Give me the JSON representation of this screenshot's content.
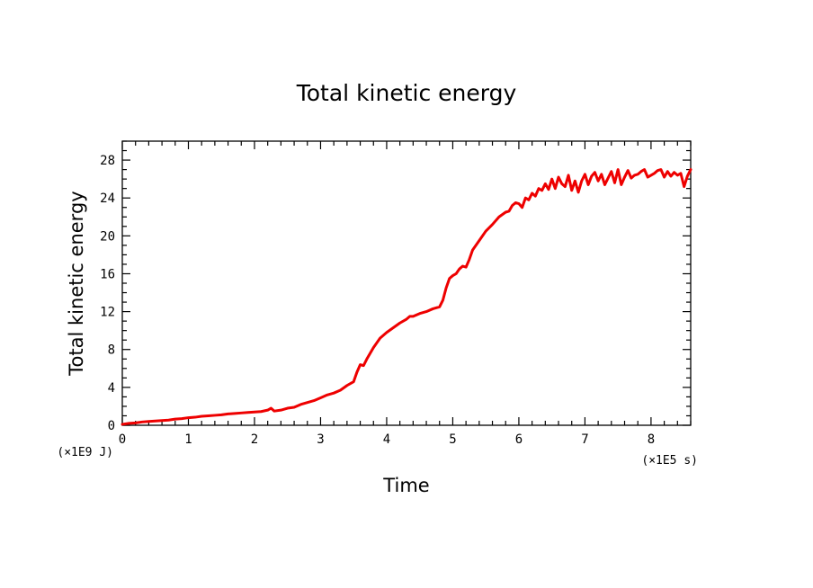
{
  "chart_data": {
    "type": "line",
    "title": "Total kinetic energy",
    "xlabel": "Time",
    "ylabel": "Total kinetic energy",
    "x_multiplier": "(×1E5 s)",
    "y_multiplier": "(×1E9 J)",
    "xlim": [
      0,
      8.6
    ],
    "ylim": [
      0,
      30
    ],
    "x_ticks": [
      "0",
      "1",
      "2",
      "3",
      "4",
      "5",
      "6",
      "7",
      "8"
    ],
    "y_ticks": [
      "0",
      "4",
      "8",
      "12",
      "16",
      "20",
      "24",
      "28"
    ],
    "grid": false,
    "legend": "none",
    "series": [
      {
        "color": "#ee0000",
        "x": [
          0,
          0.1,
          0.2,
          0.3,
          0.4,
          0.5,
          0.6,
          0.7,
          0.8,
          0.9,
          1.0,
          1.1,
          1.2,
          1.3,
          1.4,
          1.5,
          1.6,
          1.7,
          1.8,
          1.9,
          2.0,
          2.1,
          2.2,
          2.25,
          2.3,
          2.4,
          2.5,
          2.6,
          2.7,
          2.8,
          2.9,
          3.0,
          3.1,
          3.2,
          3.3,
          3.4,
          3.5,
          3.55,
          3.6,
          3.65,
          3.7,
          3.8,
          3.9,
          4.0,
          4.1,
          4.2,
          4.3,
          4.35,
          4.4,
          4.5,
          4.6,
          4.7,
          4.8,
          4.85,
          4.9,
          4.95,
          5.0,
          5.05,
          5.1,
          5.15,
          5.2,
          5.25,
          5.3,
          5.4,
          5.5,
          5.6,
          5.7,
          5.8,
          5.85,
          5.9,
          5.95,
          6.0,
          6.05,
          6.1,
          6.15,
          6.2,
          6.25,
          6.3,
          6.35,
          6.4,
          6.45,
          6.5,
          6.55,
          6.6,
          6.65,
          6.7,
          6.75,
          6.8,
          6.85,
          6.9,
          6.95,
          7.0,
          7.05,
          7.1,
          7.15,
          7.2,
          7.25,
          7.3,
          7.35,
          7.4,
          7.45,
          7.5,
          7.55,
          7.6,
          7.65,
          7.7,
          7.75,
          7.8,
          7.85,
          7.9,
          7.95,
          8.0,
          8.05,
          8.1,
          8.15,
          8.2,
          8.25,
          8.3,
          8.35,
          8.4,
          8.45,
          8.5,
          8.55,
          8.6
        ],
        "y": [
          0.1,
          0.2,
          0.25,
          0.35,
          0.4,
          0.45,
          0.5,
          0.55,
          0.65,
          0.7,
          0.8,
          0.85,
          0.95,
          1.0,
          1.05,
          1.1,
          1.2,
          1.25,
          1.3,
          1.35,
          1.4,
          1.45,
          1.6,
          1.8,
          1.5,
          1.6,
          1.8,
          1.9,
          2.2,
          2.4,
          2.6,
          2.9,
          3.2,
          3.4,
          3.7,
          4.2,
          4.6,
          5.6,
          6.4,
          6.3,
          7.0,
          8.2,
          9.2,
          9.8,
          10.3,
          10.8,
          11.2,
          11.5,
          11.5,
          11.8,
          12.0,
          12.3,
          12.5,
          13.2,
          14.5,
          15.5,
          15.8,
          16.0,
          16.5,
          16.8,
          16.7,
          17.5,
          18.5,
          19.5,
          20.5,
          21.2,
          22.0,
          22.5,
          22.6,
          23.2,
          23.5,
          23.4,
          23.0,
          24.0,
          23.8,
          24.5,
          24.2,
          25.0,
          24.8,
          25.5,
          24.9,
          26.0,
          25.0,
          26.2,
          25.5,
          25.2,
          26.4,
          24.8,
          25.8,
          24.6,
          25.8,
          26.5,
          25.4,
          26.3,
          26.7,
          25.8,
          26.5,
          25.4,
          26.1,
          26.8,
          25.6,
          27.0,
          25.4,
          26.2,
          26.9,
          26.1,
          26.4,
          26.5,
          26.8,
          27.0,
          26.2,
          26.4,
          26.6,
          26.9,
          27.0,
          26.2,
          26.8,
          26.3,
          26.7,
          26.4,
          26.6,
          25.2,
          26.3,
          27.0
        ]
      }
    ]
  }
}
